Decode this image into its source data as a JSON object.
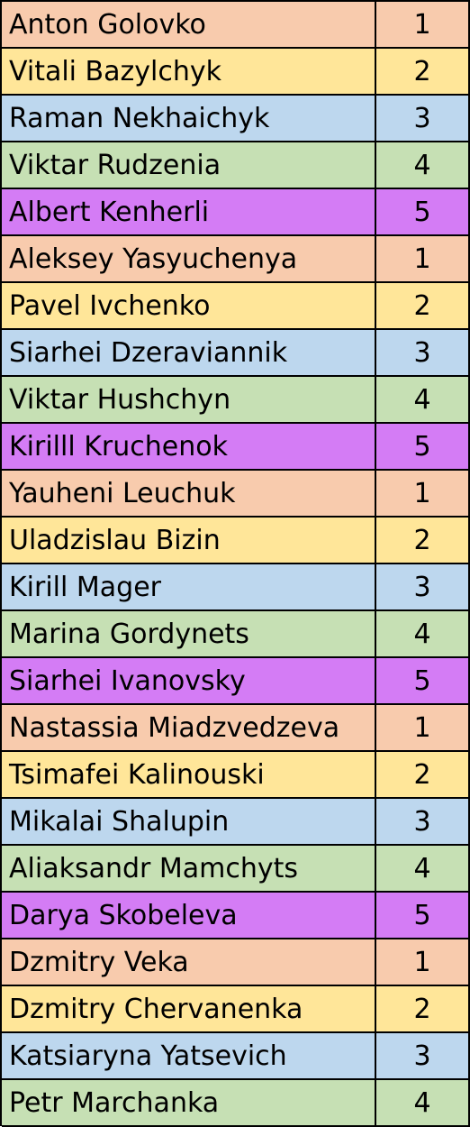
{
  "colors": {
    "1": "#f8cbad",
    "2": "#ffe699",
    "3": "#bdd7ee",
    "4": "#c6e0b4",
    "5": "#d47cf5"
  },
  "rows": [
    {
      "name": "Anton Golovko",
      "group": "1"
    },
    {
      "name": "Vitali Bazylchyk",
      "group": "2"
    },
    {
      "name": "Raman Nekhaichyk",
      "group": "3"
    },
    {
      "name": "Viktar Rudzenia",
      "group": "4"
    },
    {
      "name": "Albert Kenherli",
      "group": "5"
    },
    {
      "name": "Aleksey Yasyuchenya",
      "group": "1"
    },
    {
      "name": "Pavel Ivchenko",
      "group": "2"
    },
    {
      "name": "Siarhei Dzeraviannik",
      "group": "3"
    },
    {
      "name": "Viktar Hushchyn",
      "group": "4"
    },
    {
      "name": "Kirilll Kruchenok",
      "group": "5"
    },
    {
      "name": "Yauheni Leuchuk",
      "group": "1"
    },
    {
      "name": "Uladzislau Bizin",
      "group": "2"
    },
    {
      "name": "Kirill Mager",
      "group": "3"
    },
    {
      "name": "Marina Gordynets",
      "group": "4"
    },
    {
      "name": "Siarhei Ivanovsky",
      "group": "5"
    },
    {
      "name": "Nastassia Miadzvedzeva",
      "group": "1"
    },
    {
      "name": "Tsimafei Kalinouski",
      "group": "2"
    },
    {
      "name": "Mikalai Shalupin",
      "group": "3"
    },
    {
      "name": "Aliaksandr Mamchyts",
      "group": "4"
    },
    {
      "name": "Darya Skobeleva",
      "group": "5"
    },
    {
      "name": "Dzmitry Veka",
      "group": "1"
    },
    {
      "name": "Dzmitry Chervanenka",
      "group": "2"
    },
    {
      "name": "Katsiaryna Yatsevich",
      "group": "3"
    },
    {
      "name": "Petr Marchanka",
      "group": "4"
    }
  ]
}
